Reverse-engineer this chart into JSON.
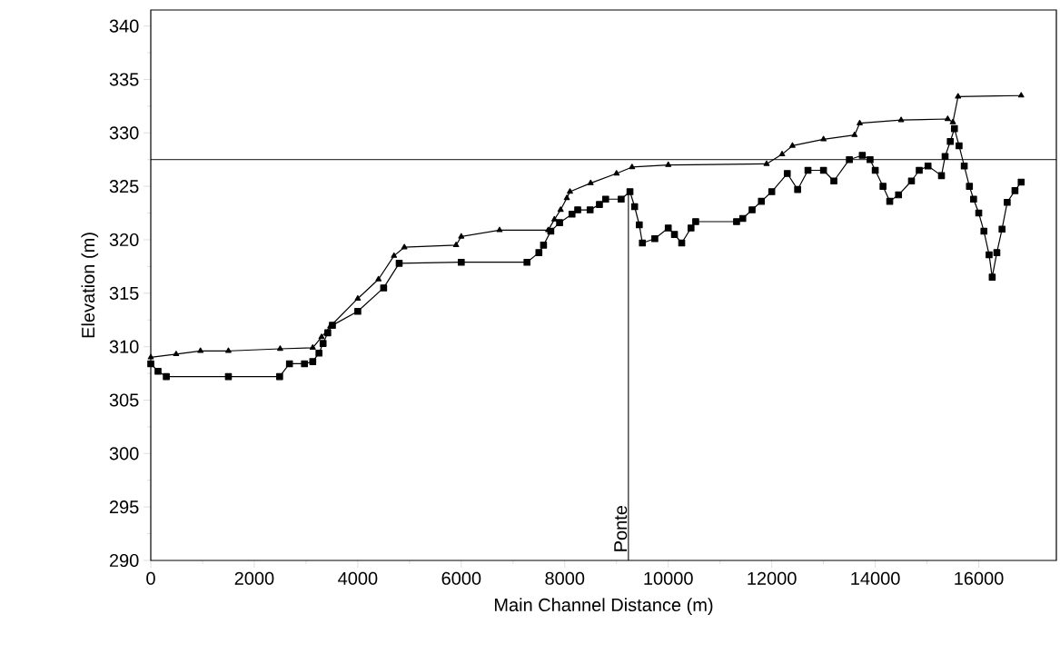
{
  "chart_data": {
    "type": "line",
    "xlabel": "Main Channel Distance (m)",
    "ylabel": "Elevation (m)",
    "xlim": [
      0,
      17500
    ],
    "ylim": [
      290,
      341.5
    ],
    "xticks": [
      0,
      2000,
      4000,
      6000,
      8000,
      10000,
      12000,
      14000,
      16000
    ],
    "yticks": [
      290,
      295,
      300,
      305,
      310,
      315,
      320,
      325,
      330,
      335,
      340
    ],
    "ref_lines": [
      {
        "axis": "y",
        "value": 327.5
      },
      {
        "axis": "x",
        "value": 9230,
        "label": "Ponte"
      }
    ],
    "series": [
      {
        "color": "#000000",
        "marker": "triangle",
        "x": [
          0,
          490,
          960,
          1500,
          2500,
          3130,
          3300,
          3470,
          4000,
          4400,
          4700,
          4900,
          5900,
          6000,
          6740,
          7680,
          7800,
          7920,
          8040,
          8100,
          8500,
          9000,
          9300,
          10000,
          11900,
          12200,
          12400,
          13000,
          13600,
          13700,
          14500,
          15400,
          15500,
          15600,
          16820
        ],
        "values": [
          309.0,
          309.3,
          309.6,
          309.6,
          309.8,
          309.9,
          310.9,
          311.9,
          314.5,
          316.3,
          318.5,
          319.3,
          319.5,
          320.3,
          320.9,
          320.9,
          321.9,
          322.8,
          323.9,
          324.5,
          325.3,
          326.2,
          326.8,
          327.0,
          327.1,
          328.0,
          328.8,
          329.4,
          329.8,
          330.9,
          331.2,
          331.3,
          331.0,
          333.4,
          333.5
        ]
      },
      {
        "color": "#000000",
        "marker": "square",
        "x": [
          0,
          140,
          300,
          1500,
          2490,
          2680,
          2970,
          3130,
          3250,
          3330,
          3420,
          3510,
          4000,
          4500,
          4800,
          6000,
          7270,
          7500,
          7590,
          7730,
          7900,
          8140,
          8250,
          8490,
          8670,
          8790,
          9090,
          9260,
          9350,
          9440,
          9500,
          9740,
          10000,
          10120,
          10260,
          10440,
          10530,
          11320,
          11440,
          11620,
          11800,
          12000,
          12300,
          12500,
          12700,
          13000,
          13200,
          13500,
          13750,
          13900,
          14000,
          14150,
          14280,
          14450,
          14700,
          14850,
          15020,
          15280,
          15350,
          15450,
          15530,
          15620,
          15720,
          15820,
          15900,
          16000,
          16100,
          16200,
          16260,
          16350,
          16450,
          16550,
          16700,
          16820
        ],
        "values": [
          308.4,
          307.7,
          307.2,
          307.2,
          307.2,
          308.4,
          308.4,
          308.6,
          309.4,
          310.3,
          311.3,
          312.0,
          313.3,
          315.5,
          317.8,
          317.9,
          317.9,
          318.8,
          319.5,
          320.8,
          321.6,
          322.4,
          322.8,
          322.8,
          323.3,
          323.8,
          323.8,
          324.5,
          323.1,
          321.4,
          319.7,
          320.1,
          321.1,
          320.5,
          319.7,
          321.1,
          321.7,
          321.7,
          322.0,
          322.8,
          323.6,
          324.5,
          326.2,
          324.7,
          326.5,
          326.5,
          325.5,
          327.5,
          327.9,
          327.5,
          326.5,
          325.0,
          323.6,
          324.2,
          325.5,
          326.5,
          326.9,
          326.0,
          327.8,
          329.2,
          330.4,
          328.8,
          326.9,
          325.0,
          323.8,
          322.5,
          320.8,
          318.6,
          316.5,
          318.8,
          321.0,
          323.5,
          324.6,
          325.4
        ]
      }
    ]
  }
}
